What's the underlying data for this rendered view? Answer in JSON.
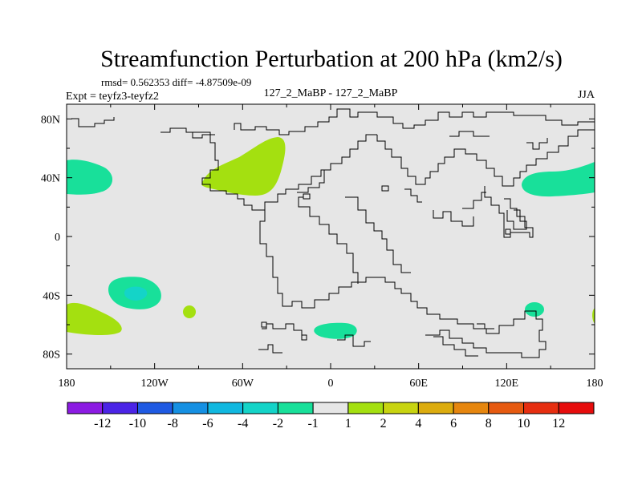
{
  "chart_data": {
    "type": "contour-map",
    "title": "Streamfunction Perturbation at 200 hPa (km2/s)",
    "stats_label": "rmsd= 0.562353 diff= -4.87509e-09",
    "left_label": "Expt = teyfz3-teyfz2",
    "center_label": "127_2_MaBP - 127_2_MaBP",
    "right_label": "JJA",
    "x_axis": {
      "range": [
        -180,
        180
      ],
      "ticks": [
        -180,
        -120,
        -60,
        0,
        60,
        120,
        180
      ],
      "tick_labels": [
        "180",
        "120W",
        "60W",
        "0",
        "60E",
        "120E",
        "180"
      ]
    },
    "y_axis": {
      "range": [
        -90,
        90
      ],
      "ticks": [
        80,
        40,
        0,
        -40,
        -80
      ],
      "tick_labels": [
        "80N",
        "40N",
        "0",
        "40S",
        "80S"
      ]
    },
    "background_value_range": [
      -1,
      1
    ],
    "anomalies": [
      {
        "name": "west-pacific-north-negative",
        "level": -2,
        "lon": -170,
        "lat": 40
      },
      {
        "name": "atlantic-north-positive",
        "level": 2,
        "lon": -55,
        "lat": 48
      },
      {
        "name": "east-asia-negative",
        "level": -2,
        "lon": 155,
        "lat": 36
      },
      {
        "name": "south-pacific-negative",
        "level": -2,
        "lon": -141,
        "lat": -38
      },
      {
        "name": "south-pacific-core-negative",
        "level": -4,
        "lon": -140,
        "lat": -40
      },
      {
        "name": "southwest-pacific-positive",
        "level": 2,
        "lon": -165,
        "lat": -57
      },
      {
        "name": "small-south-pacific-positive",
        "level": 2,
        "lon": -98,
        "lat": -52
      },
      {
        "name": "south-atlantic-negative",
        "level": -2,
        "lon": 4,
        "lat": -65
      },
      {
        "name": "south-indian-negative",
        "level": -2,
        "lon": 140,
        "lat": -50
      },
      {
        "name": "dateline-edge-positive",
        "level": 2,
        "lon": 179,
        "lat": -53
      }
    ],
    "colorbar": {
      "labels": [
        "-12",
        "-10",
        "-8",
        "-6",
        "-4",
        "-2",
        "-1",
        "1",
        "2",
        "4",
        "6",
        "8",
        "10",
        "12"
      ],
      "colors": [
        "#8c1be3",
        "#4b24e6",
        "#1f5ae3",
        "#1590e3",
        "#10b8e0",
        "#14d4c8",
        "#18e09a",
        "#e6e6e6",
        "#a4e010",
        "#c8d410",
        "#dcac0e",
        "#e6860e",
        "#e65a10",
        "#e62e10",
        "#e60c0c"
      ]
    }
  }
}
